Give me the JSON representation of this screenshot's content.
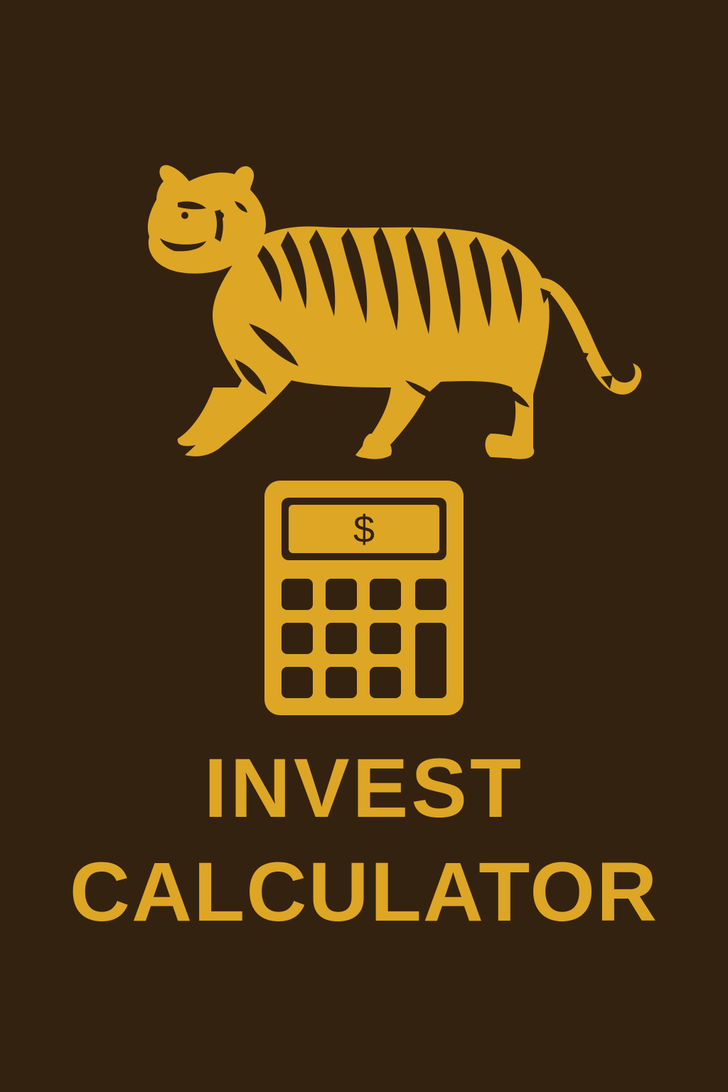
{
  "app": {
    "title_line_1": "INVEST",
    "title_line_2": "CALCULATOR"
  },
  "icons": {
    "mascot": "tiger-icon",
    "emblem": "calculator-icon",
    "display_symbol": "$"
  },
  "colors": {
    "background": "#342210",
    "accent_gold": "#DDA625"
  }
}
